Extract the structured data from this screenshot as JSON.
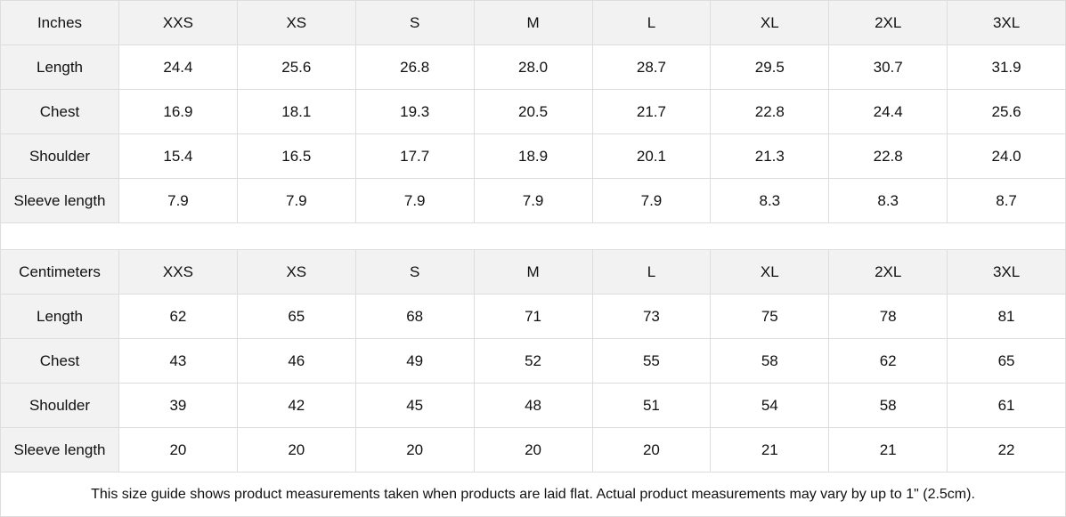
{
  "tables": [
    {
      "unit": "Inches",
      "sizes": [
        "XXS",
        "XS",
        "S",
        "M",
        "L",
        "XL",
        "2XL",
        "3XL"
      ],
      "rows": [
        {
          "label": "Length",
          "values": [
            "24.4",
            "25.6",
            "26.8",
            "28.0",
            "28.7",
            "29.5",
            "30.7",
            "31.9"
          ]
        },
        {
          "label": "Chest",
          "values": [
            "16.9",
            "18.1",
            "19.3",
            "20.5",
            "21.7",
            "22.8",
            "24.4",
            "25.6"
          ]
        },
        {
          "label": "Shoulder",
          "values": [
            "15.4",
            "16.5",
            "17.7",
            "18.9",
            "20.1",
            "21.3",
            "22.8",
            "24.0"
          ]
        },
        {
          "label": "Sleeve length",
          "values": [
            "7.9",
            "7.9",
            "7.9",
            "7.9",
            "7.9",
            "8.3",
            "8.3",
            "8.7"
          ]
        }
      ]
    },
    {
      "unit": "Centimeters",
      "sizes": [
        "XXS",
        "XS",
        "S",
        "M",
        "L",
        "XL",
        "2XL",
        "3XL"
      ],
      "rows": [
        {
          "label": "Length",
          "values": [
            "62",
            "65",
            "68",
            "71",
            "73",
            "75",
            "78",
            "81"
          ]
        },
        {
          "label": "Chest",
          "values": [
            "43",
            "46",
            "49",
            "52",
            "55",
            "58",
            "62",
            "65"
          ]
        },
        {
          "label": "Shoulder",
          "values": [
            "39",
            "42",
            "45",
            "48",
            "51",
            "54",
            "58",
            "61"
          ]
        },
        {
          "label": "Sleeve length",
          "values": [
            "20",
            "20",
            "20",
            "20",
            "20",
            "21",
            "21",
            "22"
          ]
        }
      ]
    }
  ],
  "note": "This size guide shows product measurements taken when products are laid flat.  Actual product measurements may vary by up to 1\" (2.5cm).",
  "colors": {
    "header_bg": "#f2f2f2",
    "border": "#dddddd"
  }
}
